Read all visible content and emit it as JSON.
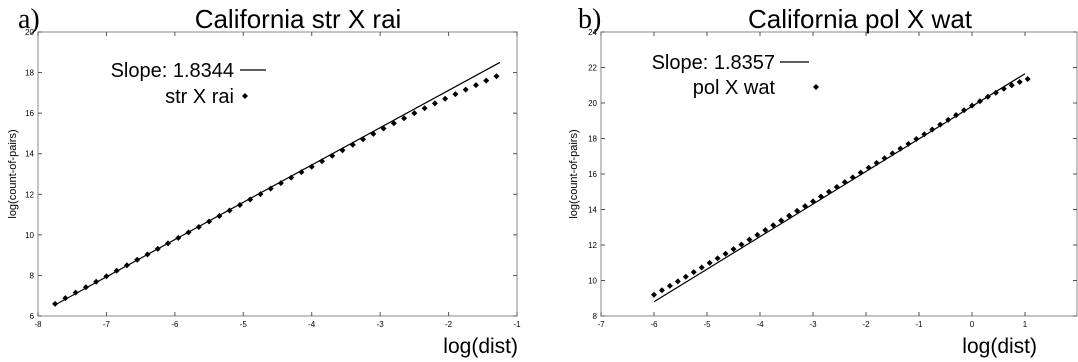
{
  "chart_data": [
    {
      "type": "scatter",
      "panel_label": "a)",
      "title": "California str X rai",
      "xlabel": "log(dist)",
      "ylabel": "log(count-of-pairs)",
      "xlim": [
        -8,
        -1
      ],
      "ylim": [
        6,
        20
      ],
      "xticks": [
        "-8",
        "-7",
        "-6",
        "-5",
        "-4",
        "-3",
        "-2",
        "-1"
      ],
      "yticks": [
        "6",
        "8",
        "10",
        "12",
        "14",
        "16",
        "18",
        "20"
      ],
      "legend": {
        "placement": "top-left",
        "line_label": "Slope: 1.8344",
        "points_label": "str X rai"
      },
      "fit_line": {
        "slope": 1.8344,
        "x": [
          -7.75,
          -1.25
        ],
        "y": [
          6.55,
          18.5
        ]
      },
      "series": [
        {
          "name": "str X rai",
          "x": [
            -7.75,
            -7.6,
            -7.45,
            -7.3,
            -7.15,
            -7.0,
            -6.85,
            -6.7,
            -6.55,
            -6.4,
            -6.25,
            -6.1,
            -5.95,
            -5.8,
            -5.65,
            -5.5,
            -5.35,
            -5.2,
            -5.05,
            -4.9,
            -4.75,
            -4.6,
            -4.45,
            -4.3,
            -4.15,
            -4.0,
            -3.85,
            -3.7,
            -3.55,
            -3.4,
            -3.25,
            -3.1,
            -2.95,
            -2.8,
            -2.65,
            -2.5,
            -2.35,
            -2.2,
            -2.05,
            -1.9,
            -1.75,
            -1.6,
            -1.45,
            -1.3
          ],
          "y": [
            6.6,
            6.88,
            7.15,
            7.42,
            7.69,
            7.96,
            8.23,
            8.5,
            8.77,
            9.04,
            9.31,
            9.58,
            9.85,
            10.12,
            10.39,
            10.66,
            10.93,
            11.2,
            11.47,
            11.74,
            12.01,
            12.28,
            12.55,
            12.82,
            13.09,
            13.36,
            13.63,
            13.9,
            14.17,
            14.44,
            14.71,
            14.98,
            15.24,
            15.5,
            15.75,
            16.0,
            16.24,
            16.48,
            16.71,
            16.94,
            17.16,
            17.38,
            17.6,
            17.82
          ]
        }
      ]
    },
    {
      "type": "scatter",
      "panel_label": "b)",
      "title": "California pol X wat",
      "xlabel": "log(dist)",
      "ylabel": "log(count-of-pairs)",
      "xlim": [
        -7,
        2
      ],
      "ylim": [
        8,
        24
      ],
      "xticks": [
        "-7",
        "-6",
        "-5",
        "-4",
        "-3",
        "-2",
        "-1",
        "0",
        "1"
      ],
      "yticks": [
        "8",
        "10",
        "12",
        "14",
        "16",
        "18",
        "20",
        "22",
        "24"
      ],
      "legend": {
        "placement": "top-left",
        "line_label": "Slope: 1.8357",
        "points_label": "pol X wat"
      },
      "fit_line": {
        "slope": 1.8357,
        "x": [
          -6.0,
          1.0
        ],
        "y": [
          8.8,
          21.65
        ]
      },
      "series": [
        {
          "name": "pol X wat",
          "x": [
            -6.0,
            -5.85,
            -5.7,
            -5.55,
            -5.4,
            -5.25,
            -5.1,
            -4.95,
            -4.8,
            -4.65,
            -4.5,
            -4.35,
            -4.2,
            -4.05,
            -3.9,
            -3.75,
            -3.6,
            -3.45,
            -3.3,
            -3.15,
            -3.0,
            -2.85,
            -2.7,
            -2.55,
            -2.4,
            -2.25,
            -2.1,
            -1.95,
            -1.8,
            -1.65,
            -1.5,
            -1.35,
            -1.2,
            -1.05,
            -0.9,
            -0.75,
            -0.6,
            -0.45,
            -0.3,
            -0.15,
            0.0,
            0.15,
            0.3,
            0.45,
            0.6,
            0.75,
            0.9,
            1.05
          ],
          "y": [
            9.2,
            9.45,
            9.7,
            9.95,
            10.21,
            10.47,
            10.73,
            10.99,
            11.25,
            11.51,
            11.77,
            12.03,
            12.3,
            12.57,
            12.84,
            13.11,
            13.38,
            13.65,
            13.92,
            14.19,
            14.46,
            14.73,
            15.0,
            15.27,
            15.54,
            15.81,
            16.08,
            16.35,
            16.62,
            16.89,
            17.16,
            17.43,
            17.7,
            17.97,
            18.24,
            18.51,
            18.78,
            19.05,
            19.32,
            19.59,
            19.85,
            20.1,
            20.35,
            20.58,
            20.8,
            21.0,
            21.18,
            21.35
          ]
        }
      ]
    }
  ]
}
